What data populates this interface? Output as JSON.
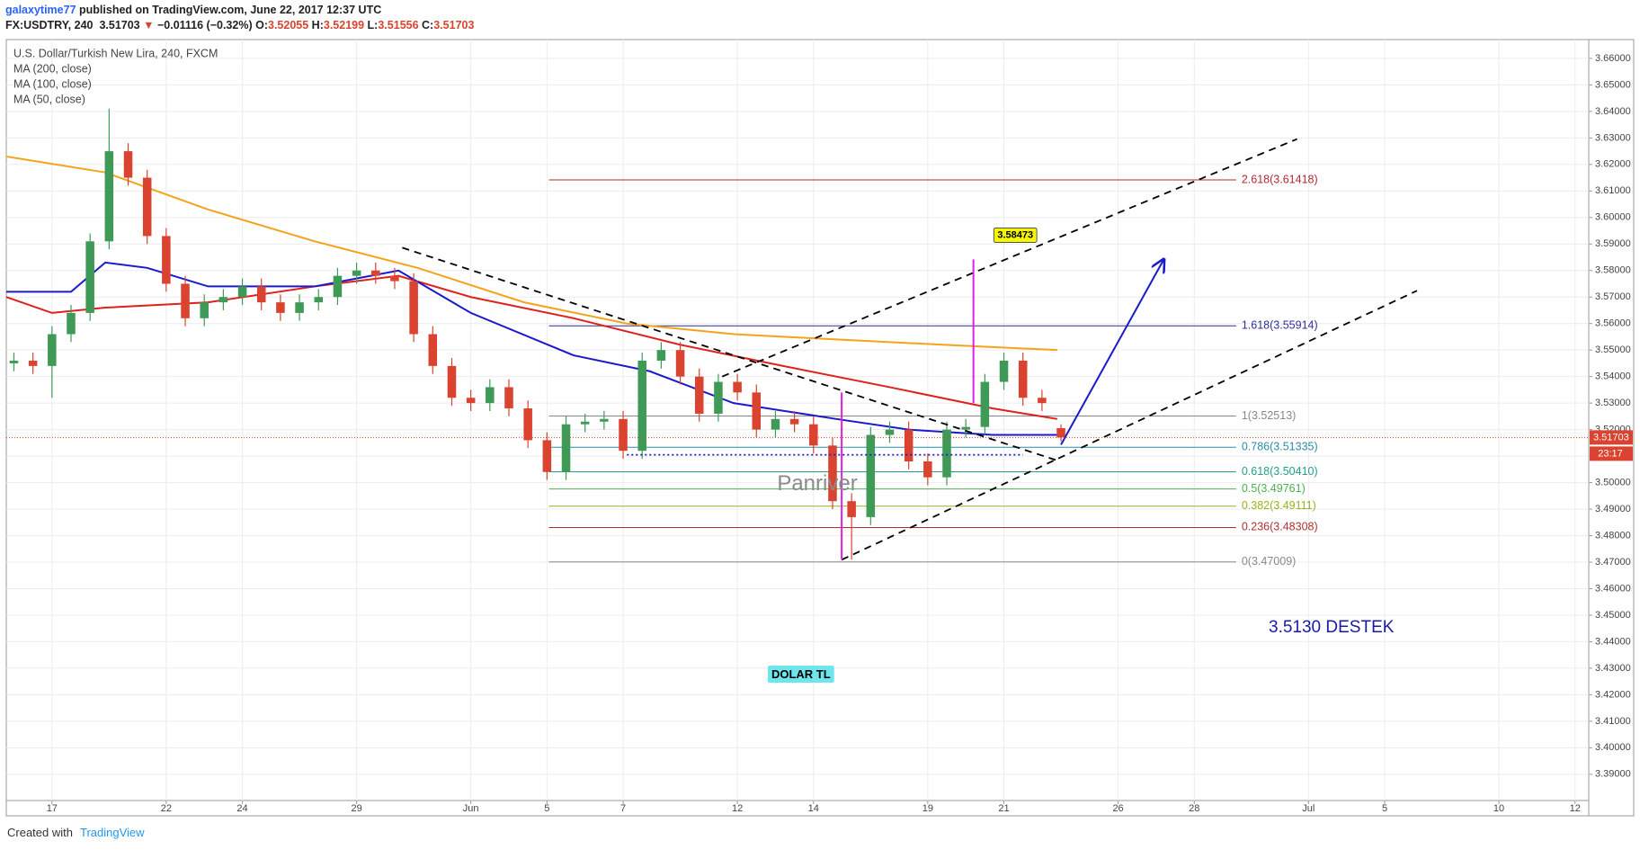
{
  "header": {
    "author": "galaxytime77",
    "published": "published on TradingView.com, June 22, 2017 12:37 UTC",
    "symbol": "FX:USDTRY, 240",
    "direction": "▼",
    "change": "−0.01116 (−0.32%)",
    "o": "O:",
    "h": "H:",
    "l": "L:",
    "c": "C:"
  },
  "footer": {
    "created": "Created with",
    "brand": "TradingView"
  },
  "chart_data": {
    "type": "candlestick",
    "title": "U.S. Dollar/Turkish New Lira, 240, FXCM",
    "x": [
      -1,
      -0.5,
      0,
      0.5,
      1,
      1.5,
      2,
      2.5,
      3,
      3.5,
      4,
      4.5,
      5,
      5.5,
      6,
      6.5,
      7,
      7.5,
      8,
      8.5,
      9,
      9.5,
      10,
      10.5,
      11,
      11.5,
      12,
      12.5,
      13,
      13.5,
      14,
      14.5,
      15,
      15.5,
      16,
      16.5,
      17,
      17.5,
      18,
      18.5,
      19,
      19.5,
      20,
      20.5,
      21,
      21.5,
      22,
      22.5,
      23,
      23.5,
      24,
      24.5,
      25,
      25.5,
      26,
      26.5
    ],
    "open": [
      3.545,
      3.546,
      3.544,
      3.556,
      3.564,
      3.591,
      3.625,
      3.615,
      3.593,
      3.575,
      3.562,
      3.568,
      3.57,
      3.574,
      3.568,
      3.564,
      3.568,
      3.57,
      3.578,
      3.58,
      3.578,
      3.576,
      3.556,
      3.544,
      3.532,
      3.53,
      3.536,
      3.528,
      3.516,
      3.504,
      3.522,
      3.523,
      3.524,
      3.512,
      3.546,
      3.55,
      3.54,
      3.526,
      3.538,
      3.534,
      3.52,
      3.524,
      3.522,
      3.514,
      3.493,
      3.487,
      3.518,
      3.52,
      3.508,
      3.502,
      3.52,
      3.521,
      3.538,
      3.546,
      3.532,
      3.52055
    ],
    "high": [
      3.549,
      3.549,
      3.559,
      3.567,
      3.594,
      3.641,
      3.628,
      3.618,
      3.596,
      3.578,
      3.571,
      3.573,
      3.577,
      3.577,
      3.571,
      3.571,
      3.573,
      3.581,
      3.583,
      3.583,
      3.581,
      3.579,
      3.559,
      3.547,
      3.535,
      3.539,
      3.539,
      3.531,
      3.519,
      3.525,
      3.526,
      3.527,
      3.527,
      3.549,
      3.553,
      3.553,
      3.543,
      3.541,
      3.541,
      3.537,
      3.527,
      3.527,
      3.525,
      3.517,
      3.496,
      3.521,
      3.523,
      3.523,
      3.511,
      3.523,
      3.524,
      3.541,
      3.549,
      3.549,
      3.535,
      3.52199
    ],
    "low": [
      3.542,
      3.541,
      3.532,
      3.553,
      3.561,
      3.588,
      3.612,
      3.59,
      3.572,
      3.559,
      3.559,
      3.565,
      3.567,
      3.565,
      3.561,
      3.561,
      3.565,
      3.567,
      3.575,
      3.575,
      3.573,
      3.553,
      3.541,
      3.529,
      3.527,
      3.527,
      3.525,
      3.513,
      3.501,
      3.501,
      3.519,
      3.52,
      3.509,
      3.509,
      3.543,
      3.537,
      3.523,
      3.523,
      3.531,
      3.517,
      3.517,
      3.519,
      3.511,
      3.49,
      3.471,
      3.484,
      3.515,
      3.505,
      3.499,
      3.499,
      3.517,
      3.518,
      3.535,
      3.529,
      3.527,
      3.51556
    ],
    "close": [
      3.546,
      3.544,
      3.556,
      3.564,
      3.591,
      3.625,
      3.615,
      3.593,
      3.575,
      3.562,
      3.568,
      3.57,
      3.574,
      3.568,
      3.564,
      3.568,
      3.57,
      3.578,
      3.58,
      3.578,
      3.576,
      3.556,
      3.544,
      3.532,
      3.53,
      3.536,
      3.528,
      3.516,
      3.504,
      3.522,
      3.523,
      3.524,
      3.512,
      3.546,
      3.55,
      3.54,
      3.526,
      3.538,
      3.534,
      3.52,
      3.524,
      3.522,
      3.514,
      3.493,
      3.487,
      3.518,
      3.52,
      3.508,
      3.502,
      3.52,
      3.521,
      3.538,
      3.546,
      3.532,
      3.53,
      3.51703
    ],
    "up_color": "#3f9a57",
    "down_color": "#d9432f",
    "countdown": "23:17",
    "overlays": [
      {
        "name": "MA (200, close)",
        "color": "#f7a21b",
        "x": [
          -1.2,
          1.4,
          4.1,
          6.9,
          9.6,
          12.4,
          15.1,
          17.9,
          20.6,
          23.4,
          26.4
        ],
        "values": [
          3.623,
          3.617,
          3.603,
          3.591,
          3.581,
          3.568,
          3.56,
          3.556,
          3.554,
          3.552,
          3.55
        ]
      },
      {
        "name": "MA (100, close)",
        "color": "#e0201b",
        "x": [
          -1.2,
          0,
          1.4,
          4.1,
          6.9,
          9.1,
          11,
          13.7,
          16.5,
          19.2,
          22,
          24.7,
          26.4
        ],
        "values": [
          3.57,
          3.564,
          3.566,
          3.568,
          3.574,
          3.578,
          3.57,
          3.562,
          3.552,
          3.544,
          3.536,
          3.528,
          3.524
        ]
      },
      {
        "name": "MA (50, close)",
        "color": "#1a1acc",
        "x": [
          -1.2,
          0.5,
          1.4,
          2.5,
          4.1,
          6.9,
          9.1,
          11,
          13.7,
          15.7,
          17.9,
          20.6,
          22.5,
          24.7,
          26.4
        ],
        "values": [
          3.572,
          3.572,
          3.583,
          3.581,
          3.574,
          3.574,
          3.58,
          3.564,
          3.548,
          3.542,
          3.53,
          3.524,
          3.52,
          3.518,
          3.518
        ]
      }
    ],
    "fib": {
      "x": [
        13.05,
        31.1
      ],
      "levels": [
        {
          "label": "2.618(3.61418)",
          "value": 3.61418,
          "color": "#b22833"
        },
        {
          "label": "1.618(3.55914)",
          "value": 3.55914,
          "color": "#2e2e9a"
        },
        {
          "label": "1(3.52513)",
          "value": 3.52513,
          "color": "#888888"
        },
        {
          "label": "0.786(3.51335)",
          "value": 3.51335,
          "color": "#2a8da6"
        },
        {
          "label": "0.618(3.50410)",
          "value": 3.5041,
          "color": "#22a08a"
        },
        {
          "label": "0.5(3.49761)",
          "value": 3.49761,
          "color": "#4caf50"
        },
        {
          "label": "0.382(3.49111)",
          "value": 3.49111,
          "color": "#9cb020"
        },
        {
          "label": "0.236(3.48308)",
          "value": 3.48308,
          "color": "#b03030"
        },
        {
          "label": "0(3.47009)",
          "value": 3.47009,
          "color": "#888888"
        }
      ]
    },
    "drawings": [
      {
        "x": [
          9.2,
          26.37
        ],
        "values": [
          3.5886,
          3.5085
        ],
        "color": "#000000",
        "dash": "dashed"
      },
      {
        "x": [
          17.6,
          32.7
        ],
        "values": [
          3.54,
          3.6296
        ],
        "color": "#000000",
        "dash": "dashed"
      },
      {
        "x": [
          20.74,
          35.85
        ],
        "values": [
          3.4709,
          3.5724
        ],
        "color": "#000000",
        "dash": "dashed"
      },
      {
        "x": [
          26.5,
          29.2
        ],
        "values": [
          3.5143,
          3.5842
        ],
        "color": "#1a1acc",
        "dash": "solid",
        "arrow": true
      },
      {
        "x": [
          20.74,
          20.74
        ],
        "values": [
          3.534,
          3.471
        ],
        "color": "#e020e0",
        "dash": "solid"
      },
      {
        "x": [
          24.2,
          24.2
        ],
        "values": [
          3.5842,
          3.53
        ],
        "color": "#e020e0",
        "dash": "solid"
      },
      {
        "x": [
          15.1,
          25.5
        ],
        "values": [
          3.5105,
          3.5105
        ],
        "color": "#1a1acc",
        "dash": "dotted"
      }
    ],
    "texts": [
      {
        "text": "Panriver",
        "x": 20.1,
        "y": 3.4993,
        "color": "#8a8a8a",
        "size": 24
      },
      {
        "text": "3.5130 DESTEK",
        "x": 33.6,
        "y": 3.4452,
        "color": "#1a1aa6",
        "size": 19
      },
      {
        "text": "DOLAR TL",
        "x": 19.67,
        "y": 3.4274,
        "color": "#000000",
        "size": 13,
        "background": "#6ee6ec"
      },
      {
        "text": "3.58473",
        "x": 25.3,
        "y": 3.5933,
        "color": "#000000",
        "size": 11,
        "background": "#f6f600"
      }
    ],
    "xlim": [
      -1.2,
      40.36
    ],
    "ylim": [
      3.3801,
      3.6671
    ],
    "xticks": [
      {
        "value": 0,
        "label": "17"
      },
      {
        "value": 3,
        "label": "22"
      },
      {
        "value": 5,
        "label": "24"
      },
      {
        "value": 8,
        "label": "29"
      },
      {
        "value": 11,
        "label": "Jun"
      },
      {
        "value": 13,
        "label": "5"
      },
      {
        "value": 15,
        "label": "7"
      },
      {
        "value": 18,
        "label": "12"
      },
      {
        "value": 20,
        "label": "14"
      },
      {
        "value": 23,
        "label": "19"
      },
      {
        "value": 25,
        "label": "21"
      },
      {
        "value": 28,
        "label": "26"
      },
      {
        "value": 30,
        "label": "28"
      },
      {
        "value": 33,
        "label": "Jul"
      },
      {
        "value": 35,
        "label": "5"
      },
      {
        "value": 38,
        "label": "10"
      },
      {
        "value": 40,
        "label": "12"
      }
    ],
    "yticks": [
      {
        "value": 3.39,
        "label": "3.39000"
      },
      {
        "value": 3.4,
        "label": "3.40000"
      },
      {
        "value": 3.41,
        "label": "3.41000"
      },
      {
        "value": 3.42,
        "label": "3.42000"
      },
      {
        "value": 3.43,
        "label": "3.43000"
      },
      {
        "value": 3.44,
        "label": "3.44000"
      },
      {
        "value": 3.45,
        "label": "3.45000"
      },
      {
        "value": 3.46,
        "label": "3.46000"
      },
      {
        "value": 3.47,
        "label": "3.47000"
      },
      {
        "value": 3.48,
        "label": "3.48000"
      },
      {
        "value": 3.49,
        "label": "3.49000"
      },
      {
        "value": 3.5,
        "label": "3.50000"
      },
      {
        "value": 3.51,
        "label": "3.51000"
      },
      {
        "value": 3.52,
        "label": "3.52000"
      },
      {
        "value": 3.53,
        "label": "3.53000"
      },
      {
        "value": 3.54,
        "label": "3.54000"
      },
      {
        "value": 3.55,
        "label": "3.55000"
      },
      {
        "value": 3.56,
        "label": "3.56000"
      },
      {
        "value": 3.57,
        "label": "3.57000"
      },
      {
        "value": 3.58,
        "label": "3.58000"
      },
      {
        "value": 3.59,
        "label": "3.59000"
      },
      {
        "value": 3.6,
        "label": "3.60000"
      },
      {
        "value": 3.61,
        "label": "3.61000"
      },
      {
        "value": 3.62,
        "label": "3.62000"
      },
      {
        "value": 3.63,
        "label": "3.63000"
      },
      {
        "value": 3.64,
        "label": "3.64000"
      },
      {
        "value": 3.65,
        "label": "3.65000"
      },
      {
        "value": 3.66,
        "label": "3.66000"
      }
    ],
    "grid": true
  }
}
